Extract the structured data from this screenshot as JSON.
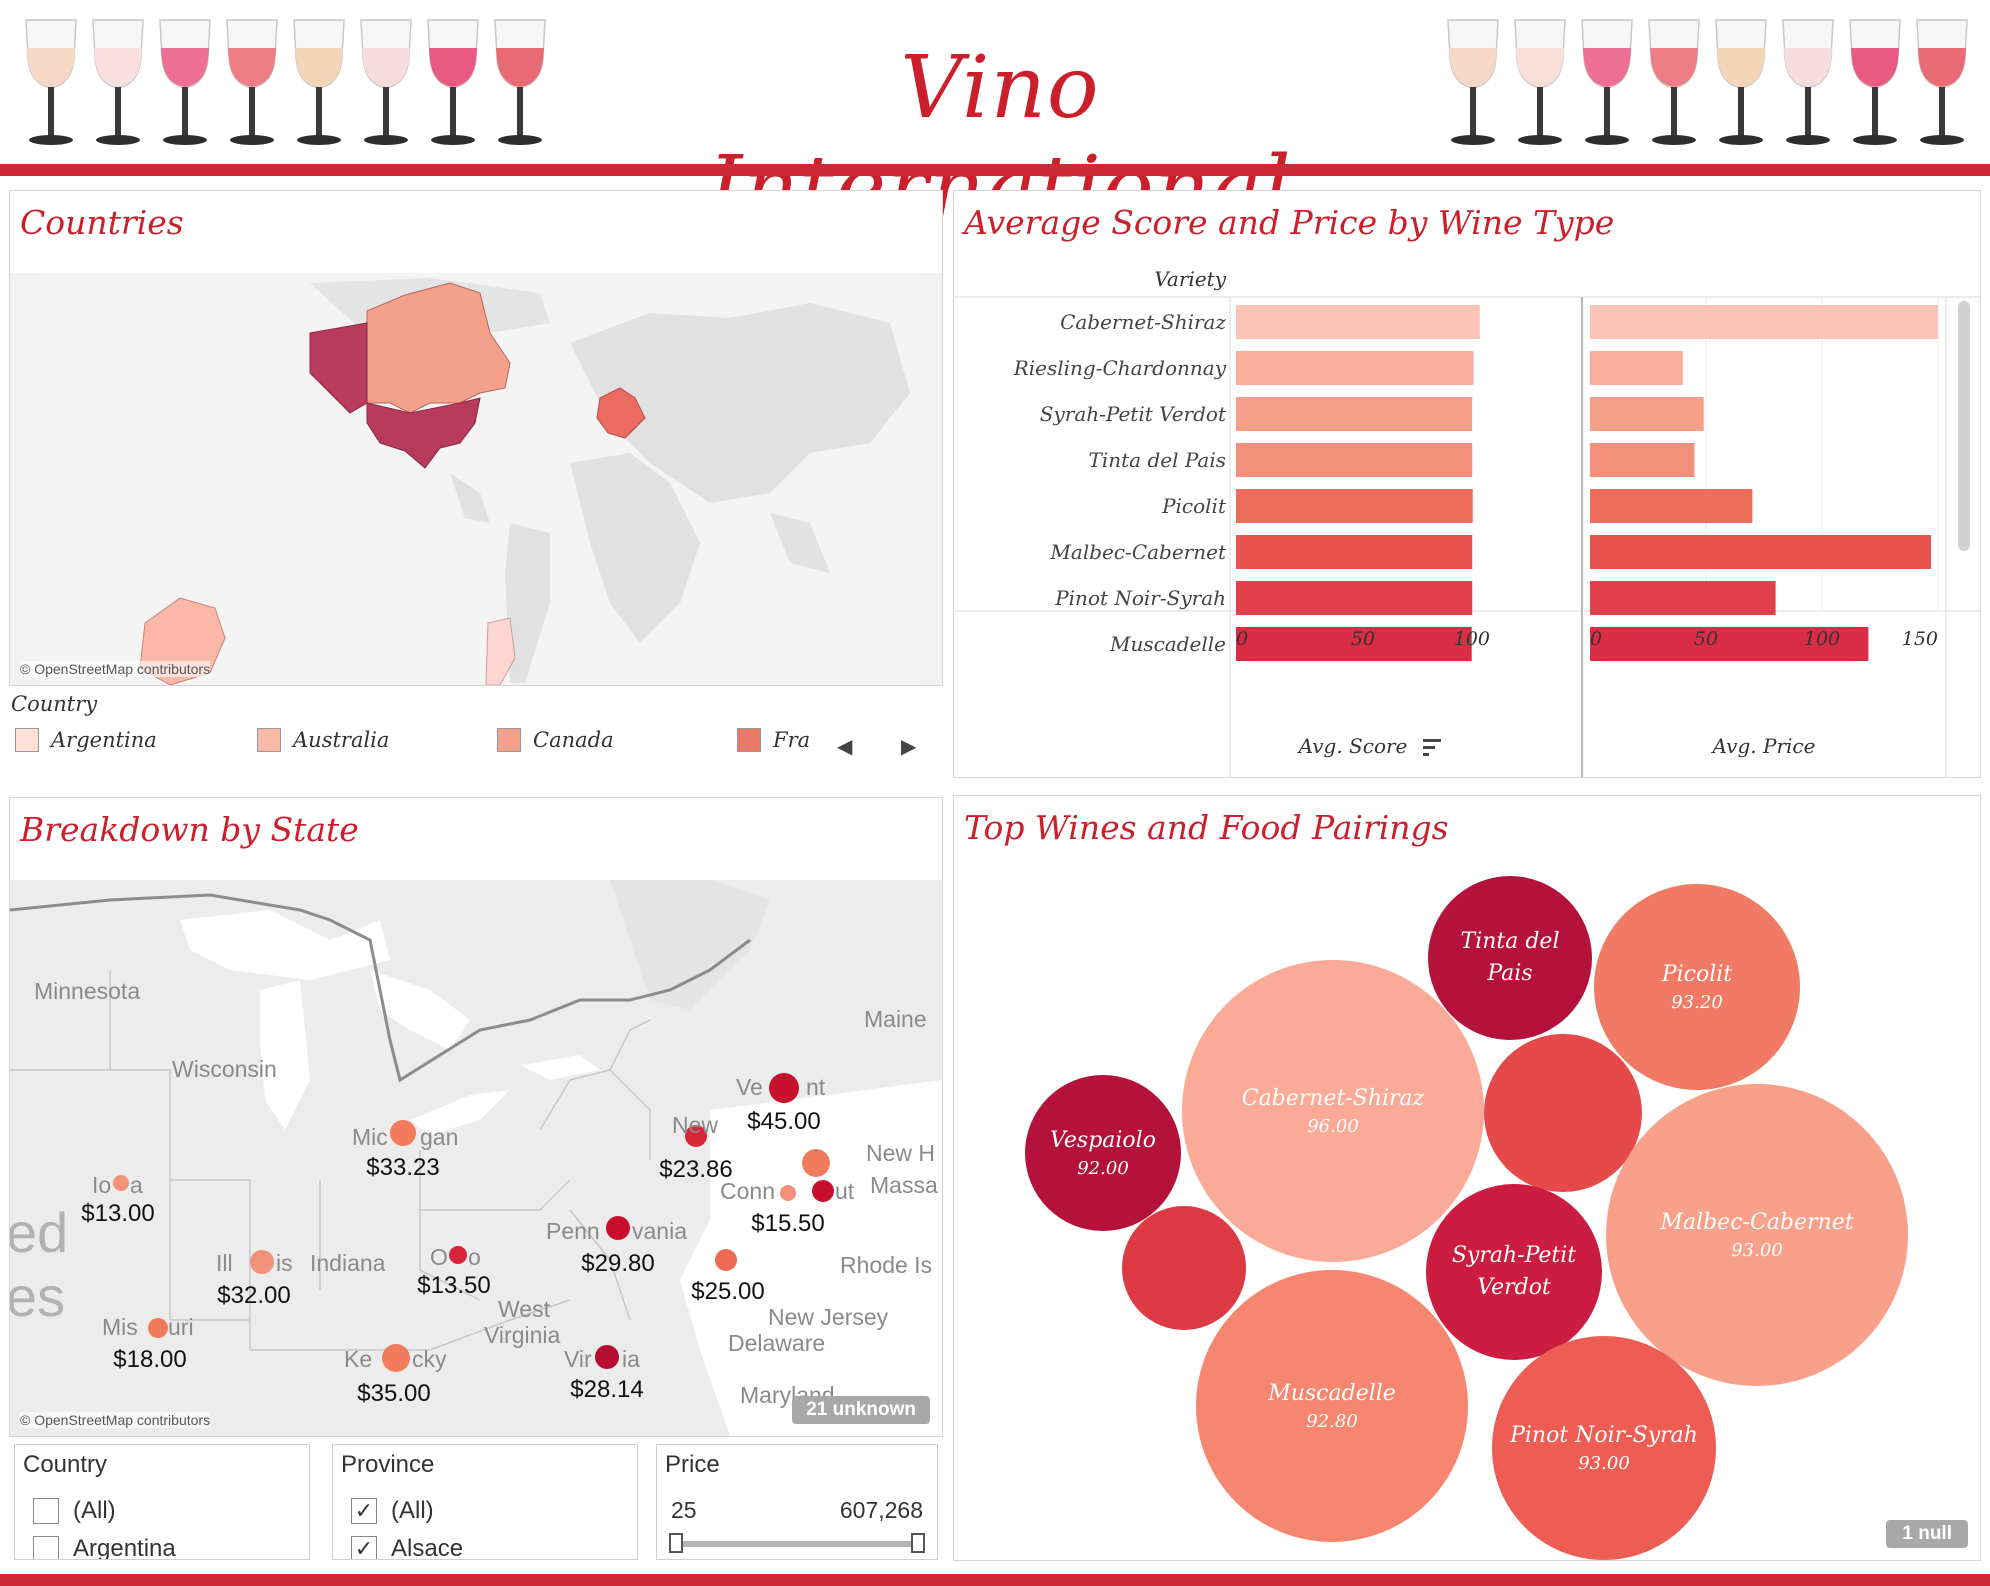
{
  "header": {
    "title": "Vino International",
    "left_glass_colors": [
      "#f6d8c6",
      "#f8dede",
      "#ee6f95",
      "#ee7d86",
      "#f4d5b8",
      "#f6dcdc",
      "#e85a82",
      "#e86a72"
    ],
    "right_glass_colors": [
      "#f6d8c6",
      "#f8e0d8",
      "#ee6f95",
      "#ee7d86",
      "#f4d5b8",
      "#f6dcdc",
      "#e85a82",
      "#e86a72"
    ]
  },
  "countries": {
    "title": "Countries",
    "map_credit": "© OpenStreetMap contributors",
    "legend_title": "Country",
    "legend": [
      {
        "label": "Argentina",
        "color": "#fde0d8"
      },
      {
        "label": "Australia",
        "color": "#f8b9a6"
      },
      {
        "label": "Canada",
        "color": "#f4a08a"
      },
      {
        "label": "Fra",
        "color": "#ec7a68"
      }
    ],
    "nav_prev": "◀",
    "nav_next": "▶"
  },
  "bars": {
    "title": "Average Score  and Price by Wine Type",
    "row_header": "Variety",
    "score_axis_label": "Avg. Score",
    "price_axis_label": "Avg. Price",
    "score_ticks": [
      "0",
      "50",
      "100"
    ],
    "price_ticks": [
      "0",
      "50",
      "100",
      "150"
    ],
    "sort_icon": "sort-descending-icon"
  },
  "chart_data": {
    "type": "bar",
    "categories": [
      "Cabernet-Shiraz",
      "Riesling-Chardonnay",
      "Syrah-Petit Verdot",
      "Tinta del Pais",
      "Picolit",
      "Malbec-Cabernet",
      "Pinot Noir-Syrah",
      "Muscadelle"
    ],
    "series": [
      {
        "name": "Avg. Score",
        "values": [
          96.0,
          93.5,
          93.0,
          93.0,
          93.2,
          93.0,
          93.0,
          92.8
        ],
        "xlim": [
          0,
          100
        ]
      },
      {
        "name": "Avg. Price",
        "values": [
          150,
          40,
          49,
          45,
          70,
          147,
          80,
          120
        ],
        "xlim": [
          0,
          150
        ]
      }
    ],
    "colors": [
      "#fbc4b6",
      "#f8ae9a",
      "#f59f88",
      "#f39079",
      "#ee6e5b",
      "#e9534d",
      "#e2404a",
      "#da2d45"
    ],
    "orientation": "horizontal"
  },
  "states": {
    "title": "Breakdown by State",
    "map_credit": "© OpenStreetMap contributors",
    "unknown_badge": "21 unknown",
    "region_labels": [
      "Minnesota",
      "Wisconsin",
      "Maine",
      "New H",
      "Massa",
      "Rhode Is",
      "New Jersey",
      "Delaware",
      "Maryland",
      "Indiana",
      "West",
      "Virginia",
      "ed",
      "es"
    ],
    "points": [
      {
        "label": "Vermont",
        "price": "$45.00",
        "color": "#c8102e"
      },
      {
        "label": "Michigan",
        "price": "$33.23",
        "color": "#f27b5d"
      },
      {
        "label": "New York",
        "price": "$23.86",
        "color": "#d9253a"
      },
      {
        "label": "Connecticut",
        "price": "$15.50",
        "color": "#c8102e"
      },
      {
        "label": "Iowa",
        "price": "$13.00",
        "color": "#f4917a"
      },
      {
        "label": "Pennsylvania",
        "price": "$29.80",
        "color": "#c8102e"
      },
      {
        "label": "Illinois",
        "price": "$32.00",
        "color": "#f4917a"
      },
      {
        "label": "Ohio",
        "price": "$13.50",
        "color": "#d9253a"
      },
      {
        "label": "New Jersey",
        "price": "$25.00",
        "color": "#ee6a55"
      },
      {
        "label": "Missouri",
        "price": "$18.00",
        "color": "#f27b5d"
      },
      {
        "label": "Kentucky",
        "price": "$35.00",
        "color": "#f27b5d"
      },
      {
        "label": "Virginia",
        "price": "$28.14",
        "color": "#b80c30"
      }
    ],
    "point_labels_visible": [
      "Ve",
      "nt",
      "Mic",
      "gan",
      "New",
      "York",
      "Conn",
      "ut",
      "Io",
      "a",
      "Penn",
      "vania",
      "Ill",
      "is",
      "O",
      "o",
      "Mis",
      "uri",
      "Ke",
      "cky",
      "Vir",
      "ia"
    ]
  },
  "filters": {
    "country": {
      "title": "Country",
      "options": [
        {
          "label": "(All)",
          "checked": false
        },
        {
          "label": "Argentina",
          "checked": false
        }
      ]
    },
    "province": {
      "title": "Province",
      "options": [
        {
          "label": "(All)",
          "checked": true
        },
        {
          "label": "Alsace",
          "checked": true
        }
      ]
    },
    "price": {
      "title": "Price",
      "min": "25",
      "max": "607,268"
    }
  },
  "bubbles": {
    "title": "Top Wines and Food Pairings",
    "null_badge": "1 null",
    "items": [
      {
        "name": "Tinta del Pais",
        "score": "",
        "color": "#b5123b"
      },
      {
        "name": "Picolit",
        "score": "93.20",
        "color": "#f07a63"
      },
      {
        "name": "Cabernet-Shiraz",
        "score": "96.00",
        "color": "#fbaa97"
      },
      {
        "name": "",
        "score": "",
        "color": "#e5494a"
      },
      {
        "name": "Vespaiolo",
        "score": "92.00",
        "color": "#b5123b"
      },
      {
        "name": "Malbec-Cabernet",
        "score": "93.00",
        "color": "#f9a08a"
      },
      {
        "name": "",
        "score": "",
        "color": "#dd3a44"
      },
      {
        "name": "Syrah-Petit Verdot",
        "score": "",
        "color": "#cc1c3f"
      },
      {
        "name": "Muscadelle",
        "score": "92.80",
        "color": "#f6866f"
      },
      {
        "name": "Pinot Noir-Syrah",
        "score": "93.00",
        "color": "#ee5d54"
      }
    ]
  }
}
